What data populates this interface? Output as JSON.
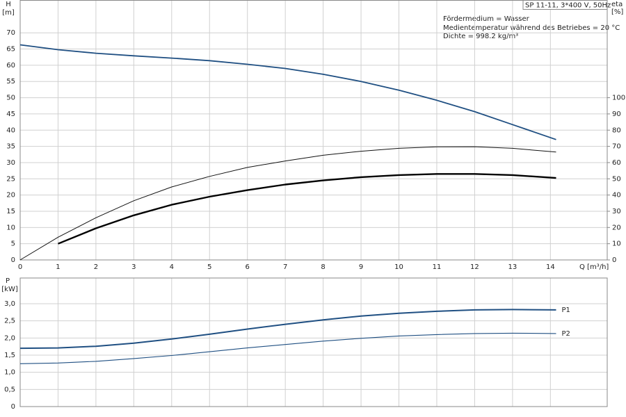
{
  "chart_data": [
    {
      "type": "line",
      "x": [
        0,
        1,
        2,
        3,
        4,
        5,
        6,
        7,
        8,
        9,
        10,
        11,
        12,
        13,
        14.15
      ],
      "xlim": [
        0,
        15.5
      ],
      "xticks": [
        0,
        1,
        2,
        3,
        4,
        5,
        6,
        7,
        8,
        9,
        10,
        11,
        12,
        13,
        14
      ],
      "xlabel": "Q [m³/h]",
      "ylabel": "H",
      "yunit": "[m]",
      "ylim": [
        0,
        80
      ],
      "yticks": [
        0,
        5,
        10,
        15,
        20,
        25,
        30,
        35,
        40,
        45,
        50,
        55,
        60,
        65,
        70
      ],
      "y2label": "eta",
      "y2unit": "[%]",
      "y2lim": [
        0,
        160
      ],
      "y2ticks": [
        0,
        10,
        20,
        30,
        40,
        50,
        60,
        70,
        80,
        90,
        100
      ],
      "grid": true,
      "info_box": "SP 11-11, 3*400 V, 50Hz",
      "annotations": [
        "Fördermedium = Wasser",
        "Medientemperatur während des Betriebes = 20 °C",
        "Dichte = 998.2 kg/m³"
      ],
      "series": [
        {
          "color": "#1f4f82",
          "values": [
            66.3,
            64.8,
            63.7,
            62.9,
            62.2,
            61.4,
            60.3,
            59,
            57.2,
            55,
            52.3,
            49.2,
            45.7,
            41.7,
            37.1
          ]
        },
        {
          "color": "#111111",
          "axis": "y2",
          "values": [
            0,
            14,
            26,
            36.5,
            45,
            51.5,
            57,
            61,
            64.5,
            67,
            68.8,
            69.7,
            69.8,
            68.8,
            66.5
          ]
        },
        {
          "color": "#000000",
          "axis": "y2",
          "values": [
            null,
            10,
            19.5,
            27.5,
            34,
            39,
            43,
            46.5,
            49,
            51,
            52.3,
            53,
            53,
            52.3,
            50.5
          ]
        }
      ]
    },
    {
      "type": "line",
      "x": [
        0,
        1,
        2,
        3,
        4,
        5,
        6,
        7,
        8,
        9,
        10,
        11,
        12,
        13,
        14.15
      ],
      "xlim": [
        0,
        15.5
      ],
      "ylabel": "P",
      "yunit": "[kW]",
      "ylim": [
        0,
        3.75
      ],
      "yticks": [
        {
          "value": 0,
          "label": "0"
        },
        {
          "value": 0.5,
          "label": "0,5"
        },
        {
          "value": 1,
          "label": "1,0"
        },
        {
          "value": 1.5,
          "label": "1,5"
        },
        {
          "value": 2,
          "label": "2,0"
        },
        {
          "value": 2.5,
          "label": "2,5"
        },
        {
          "value": 3,
          "label": "3,0"
        }
      ],
      "grid": true,
      "series": [
        {
          "name": "P1",
          "color": "#1f4f82",
          "values": [
            1.7,
            1.71,
            1.76,
            1.85,
            1.97,
            2.11,
            2.26,
            2.4,
            2.53,
            2.64,
            2.72,
            2.78,
            2.82,
            2.83,
            2.82
          ]
        },
        {
          "name": "P2",
          "color": "#1f4f82",
          "values": [
            1.25,
            1.27,
            1.32,
            1.4,
            1.49,
            1.6,
            1.71,
            1.81,
            1.91,
            1.99,
            2.06,
            2.1,
            2.13,
            2.14,
            2.13
          ]
        }
      ]
    }
  ]
}
